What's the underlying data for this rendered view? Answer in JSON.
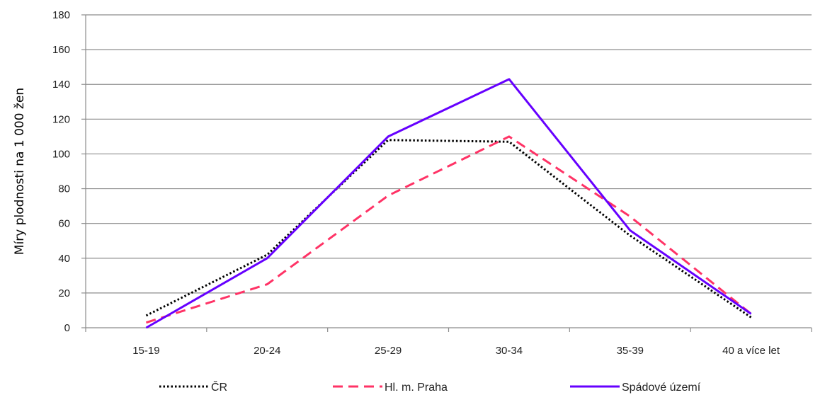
{
  "chart_data": {
    "type": "line",
    "categories": [
      "15-19",
      "20-24",
      "25-29",
      "30-34",
      "35-39",
      "40 a více let"
    ],
    "ylabel": "Míry plodnosti na 1 000 žen",
    "ylim": [
      0,
      180
    ],
    "yticks": [
      0,
      20,
      40,
      60,
      80,
      100,
      120,
      140,
      160,
      180
    ],
    "grid": true,
    "legend_position": "bottom",
    "series": [
      {
        "name": "ČR",
        "values": [
          7,
          42,
          108,
          107,
          53,
          6
        ],
        "color": "#000000",
        "style": "dotted"
      },
      {
        "name": "Hl. m. Praha",
        "values": [
          3,
          25,
          76,
          110,
          64,
          8
        ],
        "color": "#ff3366",
        "style": "dashed"
      },
      {
        "name": "Spádové území",
        "values": [
          0,
          40,
          110,
          143,
          56,
          8
        ],
        "color": "#6600ff",
        "style": "solid"
      }
    ]
  }
}
